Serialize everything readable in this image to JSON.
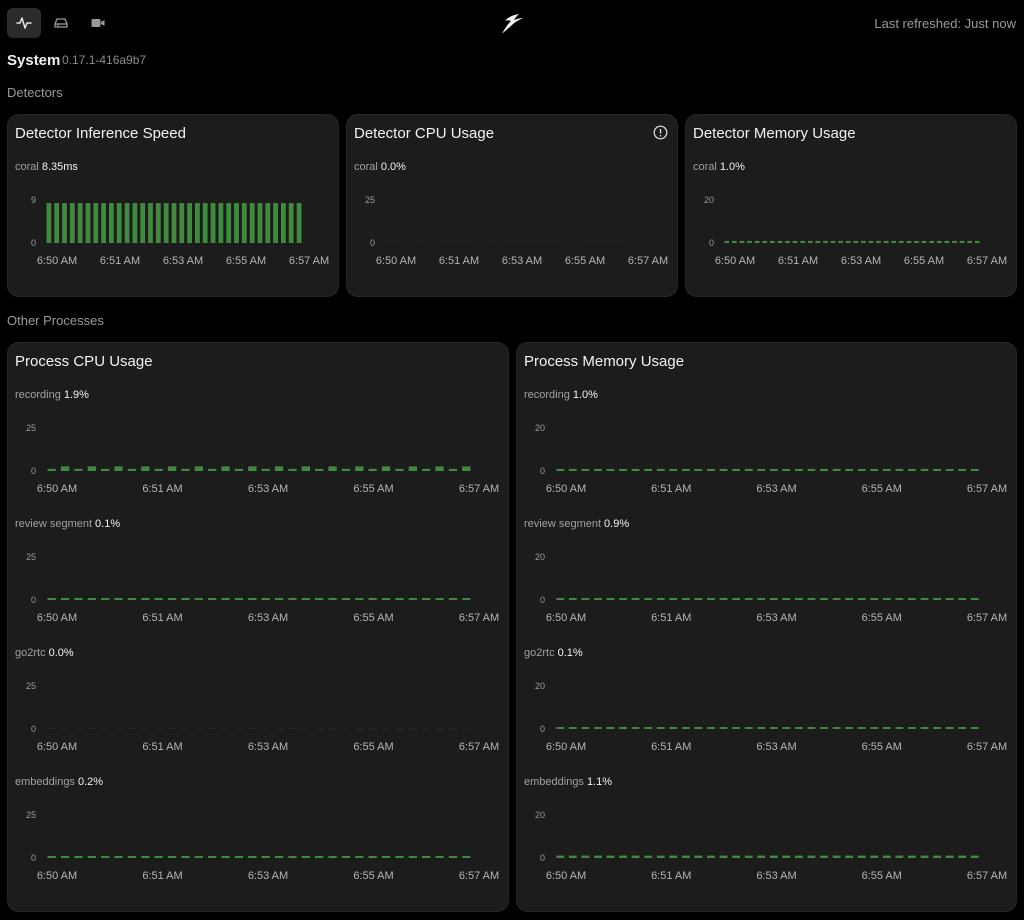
{
  "nav": {
    "items": [
      {
        "name": "general-metrics",
        "icon": "activity-icon",
        "active": true
      },
      {
        "name": "storage-metrics",
        "icon": "drive-icon",
        "active": false
      },
      {
        "name": "camera-metrics",
        "icon": "video-camera-icon",
        "active": false
      }
    ],
    "logo_icon": "frigate-bird-logo",
    "last_refreshed": "Last refreshed: Just now"
  },
  "system": {
    "title": "System",
    "version": "0.17.1-416a9b7"
  },
  "sections": {
    "detectors": "Detectors",
    "other_processes": "Other Processes"
  },
  "colors": {
    "accent": "#3f8a3c",
    "background": "#000000",
    "card": "#1c1c1c"
  },
  "detector_cards": [
    {
      "title": "Detector Inference Speed",
      "series": [
        {
          "name": "coral",
          "value": "8.35ms"
        }
      ],
      "has_info_icon": false
    },
    {
      "title": "Detector CPU Usage",
      "series": [
        {
          "name": "coral",
          "value": "0.0%"
        }
      ],
      "has_info_icon": true
    },
    {
      "title": "Detector Memory Usage",
      "series": [
        {
          "name": "coral",
          "value": "1.0%"
        }
      ],
      "has_info_icon": false
    }
  ],
  "process_cards": [
    {
      "title": "Process CPU Usage",
      "series": [
        {
          "name": "recording",
          "value": "1.9%"
        },
        {
          "name": "review segment",
          "value": "0.1%"
        },
        {
          "name": "go2rtc",
          "value": "0.0%"
        },
        {
          "name": "embeddings",
          "value": "0.2%"
        }
      ]
    },
    {
      "title": "Process Memory Usage",
      "series": [
        {
          "name": "recording",
          "value": "1.0%"
        },
        {
          "name": "review segment",
          "value": "0.9%"
        },
        {
          "name": "go2rtc",
          "value": "0.1%"
        },
        {
          "name": "embeddings",
          "value": "1.1%"
        }
      ]
    }
  ],
  "chart_data": [
    {
      "chart": "Detector Inference Speed",
      "type": "bar",
      "series_name": "coral",
      "y_ticks": [
        "9",
        "0"
      ],
      "ylim": [
        0,
        9
      ],
      "x_ticks": [
        "6:50 AM",
        "6:51 AM",
        "6:53 AM",
        "6:55 AM",
        "6:57 AM"
      ],
      "values": [
        8.35,
        8.35,
        8.35,
        8.35,
        8.35,
        8.35,
        8.35,
        8.35,
        8.35,
        8.35,
        8.35,
        8.35,
        8.35,
        8.35,
        8.35,
        8.35,
        8.35,
        8.35,
        8.35,
        8.35,
        8.35,
        8.35,
        8.35,
        8.35,
        8.35,
        8.35,
        8.35,
        8.35,
        8.35,
        8.35,
        8.35,
        8.35,
        8.35
      ]
    },
    {
      "chart": "Detector CPU Usage",
      "type": "bar",
      "series_name": "coral",
      "y_ticks": [
        "25",
        "0"
      ],
      "ylim": [
        0,
        25
      ],
      "x_ticks": [
        "6:50 AM",
        "6:51 AM",
        "6:53 AM",
        "6:55 AM",
        "6:57 AM"
      ],
      "values": [
        0,
        0,
        0,
        0,
        0,
        0,
        0,
        0,
        0,
        0,
        0,
        0,
        0,
        0,
        0,
        0,
        0,
        0,
        0,
        0,
        0,
        0,
        0,
        0,
        0,
        0,
        0,
        0,
        0,
        0,
        0,
        0,
        0,
        0
      ]
    },
    {
      "chart": "Detector Memory Usage",
      "type": "bar",
      "series_name": "coral",
      "y_ticks": [
        "20",
        "0"
      ],
      "ylim": [
        0,
        20
      ],
      "x_ticks": [
        "6:50 AM",
        "6:51 AM",
        "6:53 AM",
        "6:55 AM",
        "6:57 AM"
      ],
      "values": [
        1.0,
        1.0,
        1.0,
        1.0,
        1.0,
        1.0,
        1.0,
        1.0,
        1.0,
        1.0,
        1.0,
        1.0,
        1.0,
        1.0,
        1.0,
        1.0,
        1.0,
        1.0,
        1.0,
        1.0,
        1.0,
        1.0,
        1.0,
        1.0,
        1.0,
        1.0,
        1.0,
        1.0,
        1.0,
        1.0,
        1.0,
        1.0,
        1.0,
        1.0
      ]
    },
    {
      "chart": "Process CPU Usage - recording",
      "type": "bar",
      "series_name": "recording",
      "y_ticks": [
        "25",
        "0"
      ],
      "ylim": [
        0,
        25
      ],
      "x_ticks": [
        "6:50 AM",
        "6:51 AM",
        "6:53 AM",
        "6:55 AM",
        "6:57 AM"
      ],
      "values": [
        1.3,
        2.7,
        1.3,
        2.7,
        1.3,
        2.7,
        1.3,
        2.7,
        1.3,
        2.7,
        1.3,
        2.7,
        1.3,
        2.7,
        1.3,
        2.7,
        1.3,
        2.7,
        1.3,
        2.7,
        1.3,
        2.7,
        1.3,
        2.7,
        1.3,
        2.7,
        1.3,
        2.7,
        1.3,
        2.7,
        1.3,
        2.7
      ]
    },
    {
      "chart": "Process CPU Usage - review segment",
      "type": "bar",
      "series_name": "review segment",
      "y_ticks": [
        "25",
        "0"
      ],
      "ylim": [
        0,
        25
      ],
      "x_ticks": [
        "6:50 AM",
        "6:51 AM",
        "6:53 AM",
        "6:55 AM",
        "6:57 AM"
      ],
      "values": [
        0.1,
        0.1,
        0.1,
        0.1,
        0.1,
        0.1,
        0.1,
        0.1,
        0.1,
        0.1,
        0.1,
        0.1,
        0.1,
        0.1,
        0.1,
        0.1,
        0.1,
        0.1,
        0.1,
        0.1,
        0.1,
        0.1,
        0.1,
        0.1,
        0.1,
        0.1,
        0.1,
        0.1,
        0.1,
        0.1,
        0.1,
        0.1
      ]
    },
    {
      "chart": "Process CPU Usage - go2rtc",
      "type": "bar",
      "series_name": "go2rtc",
      "y_ticks": [
        "25",
        "0"
      ],
      "ylim": [
        0,
        25
      ],
      "x_ticks": [
        "6:50 AM",
        "6:51 AM",
        "6:53 AM",
        "6:55 AM",
        "6:57 AM"
      ],
      "values": [
        0,
        0,
        0,
        0,
        0,
        0,
        0,
        0,
        0,
        0,
        0,
        0,
        0,
        0,
        0,
        0,
        0,
        0,
        0,
        0,
        0,
        0,
        0,
        0,
        0,
        0,
        0,
        0,
        0,
        0,
        0,
        0
      ]
    },
    {
      "chart": "Process CPU Usage - embeddings",
      "type": "bar",
      "series_name": "embeddings",
      "y_ticks": [
        "25",
        "0"
      ],
      "ylim": [
        0,
        25
      ],
      "x_ticks": [
        "6:50 AM",
        "6:51 AM",
        "6:53 AM",
        "6:55 AM",
        "6:57 AM"
      ],
      "values": [
        0.2,
        0.2,
        0.2,
        0.2,
        0.2,
        0.2,
        0.2,
        0.2,
        0.2,
        0.2,
        0.2,
        0.2,
        0.2,
        0.2,
        0.2,
        0.2,
        0.2,
        0.2,
        0.2,
        0.2,
        0.2,
        0.2,
        0.2,
        0.2,
        0.2,
        0.2,
        0.2,
        0.2,
        0.2,
        0.2,
        0.2,
        0.2
      ]
    },
    {
      "chart": "Process Memory Usage - recording",
      "type": "bar",
      "series_name": "recording",
      "y_ticks": [
        "20",
        "0"
      ],
      "ylim": [
        0,
        20
      ],
      "x_ticks": [
        "6:50 AM",
        "6:51 AM",
        "6:53 AM",
        "6:55 AM",
        "6:57 AM"
      ],
      "values": [
        1.0,
        1.0,
        1.0,
        1.0,
        1.0,
        1.0,
        1.0,
        1.0,
        1.0,
        1.0,
        1.0,
        1.0,
        1.0,
        1.0,
        1.0,
        1.0,
        1.0,
        1.0,
        1.0,
        1.0,
        1.0,
        1.0,
        1.0,
        1.0,
        1.0,
        1.0,
        1.0,
        1.0,
        1.0,
        1.0,
        1.0,
        1.0,
        1.0,
        1.0
      ]
    },
    {
      "chart": "Process Memory Usage - review segment",
      "type": "bar",
      "series_name": "review segment",
      "y_ticks": [
        "20",
        "0"
      ],
      "ylim": [
        0,
        20
      ],
      "x_ticks": [
        "6:50 AM",
        "6:51 AM",
        "6:53 AM",
        "6:55 AM",
        "6:57 AM"
      ],
      "values": [
        0.9,
        0.9,
        0.9,
        0.9,
        0.9,
        0.9,
        0.9,
        0.9,
        0.9,
        0.9,
        0.9,
        0.9,
        0.9,
        0.9,
        0.9,
        0.9,
        0.9,
        0.9,
        0.9,
        0.9,
        0.9,
        0.9,
        0.9,
        0.9,
        0.9,
        0.9,
        0.9,
        0.9,
        0.9,
        0.9,
        0.9,
        0.9,
        0.9,
        0.9
      ]
    },
    {
      "chart": "Process Memory Usage - go2rtc",
      "type": "bar",
      "series_name": "go2rtc",
      "y_ticks": [
        "20",
        "0"
      ],
      "ylim": [
        0,
        20
      ],
      "x_ticks": [
        "6:50 AM",
        "6:51 AM",
        "6:53 AM",
        "6:55 AM",
        "6:57 AM"
      ],
      "values": [
        0.1,
        0.1,
        0.1,
        0.1,
        0.1,
        0.1,
        0.1,
        0.1,
        0.1,
        0.1,
        0.1,
        0.1,
        0.1,
        0.1,
        0.1,
        0.1,
        0.1,
        0.1,
        0.1,
        0.1,
        0.1,
        0.1,
        0.1,
        0.1,
        0.1,
        0.1,
        0.1,
        0.1,
        0.1,
        0.1,
        0.1,
        0.1,
        0.1,
        0.1
      ]
    },
    {
      "chart": "Process Memory Usage - embeddings",
      "type": "bar",
      "series_name": "embeddings",
      "y_ticks": [
        "20",
        "0"
      ],
      "ylim": [
        0,
        20
      ],
      "x_ticks": [
        "6:50 AM",
        "6:51 AM",
        "6:53 AM",
        "6:55 AM",
        "6:57 AM"
      ],
      "values": [
        1.1,
        1.1,
        1.1,
        1.1,
        1.1,
        1.1,
        1.1,
        1.1,
        1.1,
        1.1,
        1.1,
        1.1,
        1.1,
        1.1,
        1.1,
        1.1,
        1.1,
        1.1,
        1.1,
        1.1,
        1.1,
        1.1,
        1.1,
        1.1,
        1.1,
        1.1,
        1.1,
        1.1,
        1.1,
        1.1,
        1.1,
        1.1,
        1.1,
        1.1
      ]
    }
  ]
}
